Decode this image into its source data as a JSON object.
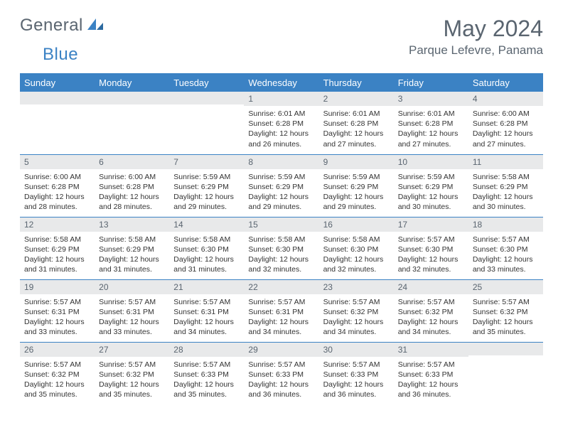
{
  "logo": {
    "word1": "General",
    "word2": "Blue"
  },
  "header": {
    "month_title": "May 2024",
    "location": "Parque Lefevre, Panama"
  },
  "colors": {
    "accent": "#3b82c4",
    "header_text": "#5a6570",
    "daybar_bg": "#e8e9ea",
    "white": "#ffffff"
  },
  "day_headers": [
    "Sunday",
    "Monday",
    "Tuesday",
    "Wednesday",
    "Thursday",
    "Friday",
    "Saturday"
  ],
  "weeks": [
    [
      {
        "n": "",
        "t": ""
      },
      {
        "n": "",
        "t": ""
      },
      {
        "n": "",
        "t": ""
      },
      {
        "n": "1",
        "t": "Sunrise: 6:01 AM\nSunset: 6:28 PM\nDaylight: 12 hours and 26 minutes."
      },
      {
        "n": "2",
        "t": "Sunrise: 6:01 AM\nSunset: 6:28 PM\nDaylight: 12 hours and 27 minutes."
      },
      {
        "n": "3",
        "t": "Sunrise: 6:01 AM\nSunset: 6:28 PM\nDaylight: 12 hours and 27 minutes."
      },
      {
        "n": "4",
        "t": "Sunrise: 6:00 AM\nSunset: 6:28 PM\nDaylight: 12 hours and 27 minutes."
      }
    ],
    [
      {
        "n": "5",
        "t": "Sunrise: 6:00 AM\nSunset: 6:28 PM\nDaylight: 12 hours and 28 minutes."
      },
      {
        "n": "6",
        "t": "Sunrise: 6:00 AM\nSunset: 6:28 PM\nDaylight: 12 hours and 28 minutes."
      },
      {
        "n": "7",
        "t": "Sunrise: 5:59 AM\nSunset: 6:29 PM\nDaylight: 12 hours and 29 minutes."
      },
      {
        "n": "8",
        "t": "Sunrise: 5:59 AM\nSunset: 6:29 PM\nDaylight: 12 hours and 29 minutes."
      },
      {
        "n": "9",
        "t": "Sunrise: 5:59 AM\nSunset: 6:29 PM\nDaylight: 12 hours and 29 minutes."
      },
      {
        "n": "10",
        "t": "Sunrise: 5:59 AM\nSunset: 6:29 PM\nDaylight: 12 hours and 30 minutes."
      },
      {
        "n": "11",
        "t": "Sunrise: 5:58 AM\nSunset: 6:29 PM\nDaylight: 12 hours and 30 minutes."
      }
    ],
    [
      {
        "n": "12",
        "t": "Sunrise: 5:58 AM\nSunset: 6:29 PM\nDaylight: 12 hours and 31 minutes."
      },
      {
        "n": "13",
        "t": "Sunrise: 5:58 AM\nSunset: 6:29 PM\nDaylight: 12 hours and 31 minutes."
      },
      {
        "n": "14",
        "t": "Sunrise: 5:58 AM\nSunset: 6:30 PM\nDaylight: 12 hours and 31 minutes."
      },
      {
        "n": "15",
        "t": "Sunrise: 5:58 AM\nSunset: 6:30 PM\nDaylight: 12 hours and 32 minutes."
      },
      {
        "n": "16",
        "t": "Sunrise: 5:58 AM\nSunset: 6:30 PM\nDaylight: 12 hours and 32 minutes."
      },
      {
        "n": "17",
        "t": "Sunrise: 5:57 AM\nSunset: 6:30 PM\nDaylight: 12 hours and 32 minutes."
      },
      {
        "n": "18",
        "t": "Sunrise: 5:57 AM\nSunset: 6:30 PM\nDaylight: 12 hours and 33 minutes."
      }
    ],
    [
      {
        "n": "19",
        "t": "Sunrise: 5:57 AM\nSunset: 6:31 PM\nDaylight: 12 hours and 33 minutes."
      },
      {
        "n": "20",
        "t": "Sunrise: 5:57 AM\nSunset: 6:31 PM\nDaylight: 12 hours and 33 minutes."
      },
      {
        "n": "21",
        "t": "Sunrise: 5:57 AM\nSunset: 6:31 PM\nDaylight: 12 hours and 34 minutes."
      },
      {
        "n": "22",
        "t": "Sunrise: 5:57 AM\nSunset: 6:31 PM\nDaylight: 12 hours and 34 minutes."
      },
      {
        "n": "23",
        "t": "Sunrise: 5:57 AM\nSunset: 6:32 PM\nDaylight: 12 hours and 34 minutes."
      },
      {
        "n": "24",
        "t": "Sunrise: 5:57 AM\nSunset: 6:32 PM\nDaylight: 12 hours and 34 minutes."
      },
      {
        "n": "25",
        "t": "Sunrise: 5:57 AM\nSunset: 6:32 PM\nDaylight: 12 hours and 35 minutes."
      }
    ],
    [
      {
        "n": "26",
        "t": "Sunrise: 5:57 AM\nSunset: 6:32 PM\nDaylight: 12 hours and 35 minutes."
      },
      {
        "n": "27",
        "t": "Sunrise: 5:57 AM\nSunset: 6:32 PM\nDaylight: 12 hours and 35 minutes."
      },
      {
        "n": "28",
        "t": "Sunrise: 5:57 AM\nSunset: 6:33 PM\nDaylight: 12 hours and 35 minutes."
      },
      {
        "n": "29",
        "t": "Sunrise: 5:57 AM\nSunset: 6:33 PM\nDaylight: 12 hours and 36 minutes."
      },
      {
        "n": "30",
        "t": "Sunrise: 5:57 AM\nSunset: 6:33 PM\nDaylight: 12 hours and 36 minutes."
      },
      {
        "n": "31",
        "t": "Sunrise: 5:57 AM\nSunset: 6:33 PM\nDaylight: 12 hours and 36 minutes."
      },
      {
        "n": "",
        "t": ""
      }
    ]
  ]
}
